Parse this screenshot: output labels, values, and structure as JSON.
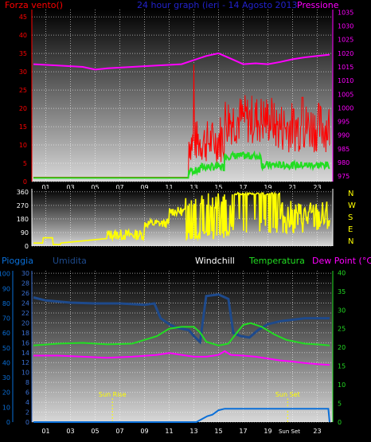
{
  "header": {
    "left": "Forza vento()",
    "center": "24 hour graph (ieri - 14 Agosto 2013",
    "right": "Pressione"
  },
  "legend2": {
    "pioggia": "Pioggia",
    "umidita": "Umidita",
    "windchill": "Windchill",
    "temperatura": "Temperatura",
    "dewpoint": "Dew Point (°C)"
  },
  "colors": {
    "wind": "#ff0000",
    "gust_avg": "#22dd22",
    "pressure": "#ff00ff",
    "direction": "#ffff00",
    "humidity": "#1e4a8c",
    "rain": "#0a6fd8",
    "temperature": "#22dd22",
    "dewpoint": "#ff00ff",
    "header_blue": "#2222cc"
  },
  "chart_data": [
    {
      "type": "line",
      "name": "wind-pressure",
      "x_ticks": [
        "01",
        "03",
        "05",
        "07",
        "09",
        "11",
        "13",
        "15",
        "17",
        "19",
        "21",
        "23"
      ],
      "y_left_ticks": [
        "0",
        "5",
        "10",
        "15",
        "20",
        "25",
        "30",
        "35",
        "40",
        "45"
      ],
      "y_left_range": [
        0,
        47
      ],
      "y_right_ticks": [
        "975",
        "980",
        "985",
        "990",
        "995",
        "1000",
        "1005",
        "1010",
        "1015",
        "1020",
        "1025",
        "1030",
        "1035"
      ],
      "y_right_range": [
        973,
        1036
      ],
      "pressure": {
        "x": [
          0,
          2,
          4,
          5,
          6,
          8,
          10,
          12,
          13,
          14,
          15,
          16,
          17,
          18,
          19,
          20,
          21,
          22,
          23,
          24
        ],
        "y": [
          1016,
          1015.5,
          1015,
          1014,
          1014.5,
          1015,
          1015.5,
          1016,
          1017.5,
          1019,
          1020,
          1018,
          1016,
          1016.3,
          1016,
          1016.8,
          1017.8,
          1018.5,
          1019,
          1019.5
        ]
      },
      "wind_seed": 7
    },
    {
      "type": "line",
      "name": "wind-direction",
      "y_left_ticks": [
        "0",
        "90",
        "180",
        "270",
        "360"
      ],
      "y_left_range": [
        0,
        380
      ],
      "right_labels": [
        "N",
        "W",
        "S",
        "E",
        "N"
      ]
    },
    {
      "type": "line",
      "name": "temperature-humidity-rain",
      "x_ticks": [
        "01",
        "03",
        "05",
        "07",
        "09",
        "11",
        "13",
        "15",
        "17",
        "19",
        "21",
        "23"
      ],
      "x_tick_sun": "Sun Set",
      "y_rain_ticks": [
        "0",
        "10",
        "20",
        "30",
        "40",
        "50",
        "60",
        "70",
        "80",
        "90",
        "100"
      ],
      "y_rain_range": [
        0,
        102
      ],
      "y_hum_ticks": [
        "0",
        "2",
        "4",
        "6",
        "8",
        "10",
        "12",
        "14",
        "16",
        "18",
        "20",
        "22",
        "24",
        "26",
        "28",
        "30"
      ],
      "y_hum_range": [
        0,
        30.5
      ],
      "y_temp_ticks": [
        "0",
        "5",
        "10",
        "15",
        "20",
        "25",
        "30",
        "35",
        "40"
      ],
      "y_temp_range": [
        0,
        40.5
      ],
      "annotations": {
        "sunrise": "Sun Rise",
        "sunset": "Sun Set",
        "sunrise_hour": 6.4,
        "sunset_hour": 20.6
      },
      "humidity_pct": {
        "x": [
          0,
          1,
          3,
          5,
          7,
          9,
          9.8,
          10.3,
          11,
          11.5,
          12,
          12.6,
          13.0,
          13.5,
          14.0,
          15.0,
          15.8,
          16.2,
          16.8,
          17.5,
          18.2,
          19,
          20,
          21,
          22,
          23,
          24
        ],
        "y": [
          84,
          82,
          80.5,
          80,
          80,
          79,
          80,
          70,
          66,
          64,
          63,
          62,
          58,
          54,
          85,
          86,
          83,
          60,
          58,
          57,
          62,
          66,
          68,
          69,
          70,
          70,
          70
        ]
      },
      "temperature": {
        "x": [
          0,
          2,
          4,
          6,
          8,
          9,
          10,
          11,
          12,
          13,
          13.5,
          14,
          15,
          15.8,
          16.5,
          17,
          17.6,
          18.5,
          19.5,
          20.5,
          22,
          23,
          24
        ],
        "y": [
          20.5,
          21,
          21.2,
          20.8,
          21,
          22,
          23,
          25,
          25.5,
          25.5,
          24,
          21.5,
          20.5,
          21,
          24,
          26,
          26.5,
          25.5,
          23.5,
          22,
          21,
          20.8,
          20.5
        ]
      },
      "dewpoint": {
        "x": [
          0,
          2,
          4,
          6,
          8,
          10,
          11,
          12,
          13,
          14,
          15,
          15.5,
          16,
          17,
          18,
          19,
          20,
          21,
          22,
          23,
          24
        ],
        "y": [
          17.8,
          17.8,
          17.5,
          17.2,
          17.5,
          18,
          18.5,
          18,
          17.5,
          17.5,
          18,
          19,
          18,
          17.8,
          17.5,
          17,
          16.5,
          16.2,
          15.8,
          15.5,
          15.3
        ]
      },
      "rain_pct": {
        "x": [
          0,
          13.2,
          14.1,
          14.5,
          15.0,
          15.5,
          23.9,
          24
        ],
        "y": [
          0,
          0,
          4,
          5,
          8,
          9,
          9,
          0
        ]
      }
    }
  ]
}
